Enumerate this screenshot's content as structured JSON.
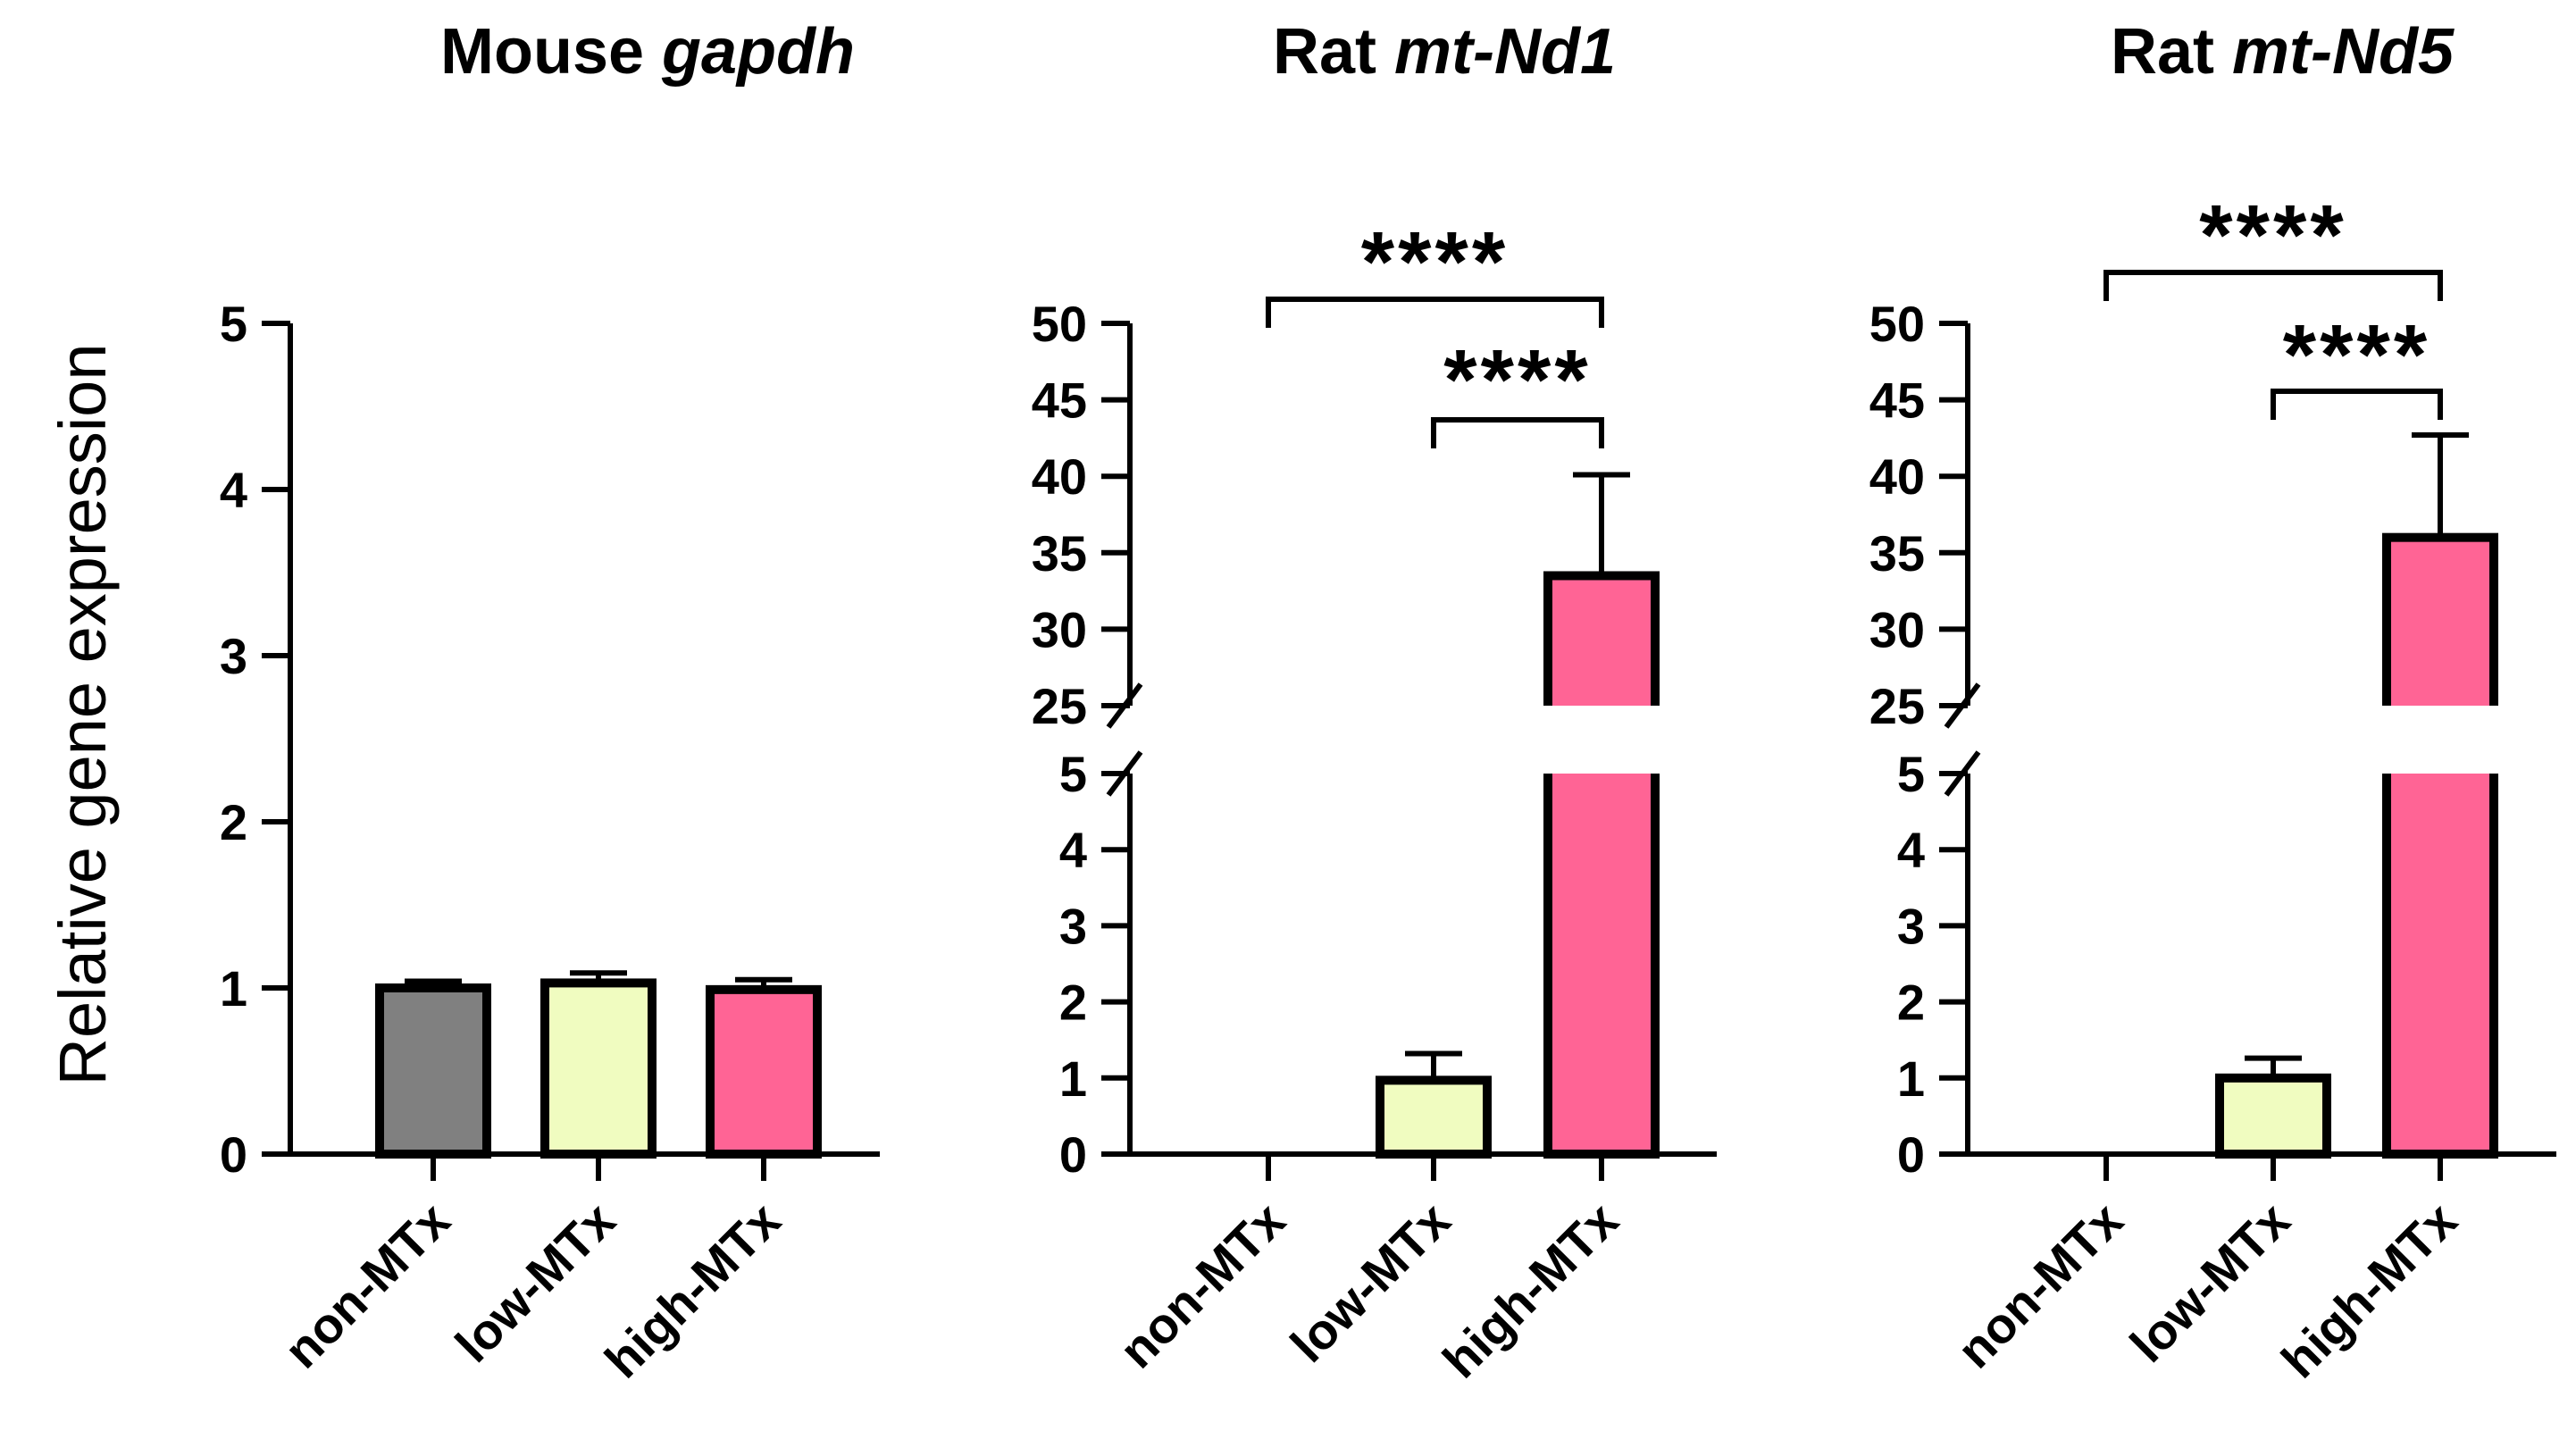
{
  "y_label": "Relative gene expression",
  "colors": {
    "non-MTx": "#808080",
    "low-MTx": "#f0fcc0",
    "high-MTx": "#ff6495",
    "axis": "#000000"
  },
  "chart_data": [
    {
      "type": "bar",
      "title_prefix": "Mouse ",
      "title_gene": "gapdh",
      "categories": [
        "non-MTx",
        "low-MTx",
        "high-MTx"
      ],
      "values": [
        1.0,
        1.03,
        0.99
      ],
      "errors": [
        0.04,
        0.06,
        0.06
      ],
      "ylabel": "Relative gene expression",
      "ylim": [
        0,
        5
      ],
      "yticks": [
        0,
        1,
        2,
        3,
        4,
        5
      ],
      "grid": false,
      "comparisons": []
    },
    {
      "type": "bar",
      "title_prefix": "Rat ",
      "title_gene": "mt-Nd1",
      "categories": [
        "non-MTx",
        "low-MTx",
        "high-MTx"
      ],
      "values": [
        0,
        0.97,
        33.5
      ],
      "errors": [
        0,
        0.35,
        6.6
      ],
      "ylabel": "",
      "axis_break": {
        "lower": [
          0,
          5
        ],
        "upper": [
          25,
          50
        ]
      },
      "yticks_lower": [
        0,
        1,
        2,
        3,
        4,
        5
      ],
      "yticks_upper": [
        25,
        30,
        35,
        40,
        45,
        50
      ],
      "grid": false,
      "comparisons": [
        {
          "from": "non-MTx",
          "to": "high-MTx",
          "label": "****"
        },
        {
          "from": "low-MTx",
          "to": "high-MTx",
          "label": "****"
        }
      ]
    },
    {
      "type": "bar",
      "title_prefix": "Rat ",
      "title_gene": "mt-Nd5",
      "categories": [
        "non-MTx",
        "low-MTx",
        "high-MTx"
      ],
      "values": [
        0,
        1.0,
        36.0
      ],
      "errors": [
        0,
        0.26,
        6.7
      ],
      "ylabel": "",
      "axis_break": {
        "lower": [
          0,
          5
        ],
        "upper": [
          25,
          50
        ]
      },
      "yticks_lower": [
        0,
        1,
        2,
        3,
        4,
        5
      ],
      "yticks_upper": [
        25,
        30,
        35,
        40,
        45,
        50
      ],
      "grid": false,
      "comparisons": [
        {
          "from": "non-MTx",
          "to": "high-MTx",
          "label": "****"
        },
        {
          "from": "low-MTx",
          "to": "high-MTx",
          "label": "****"
        }
      ]
    }
  ]
}
